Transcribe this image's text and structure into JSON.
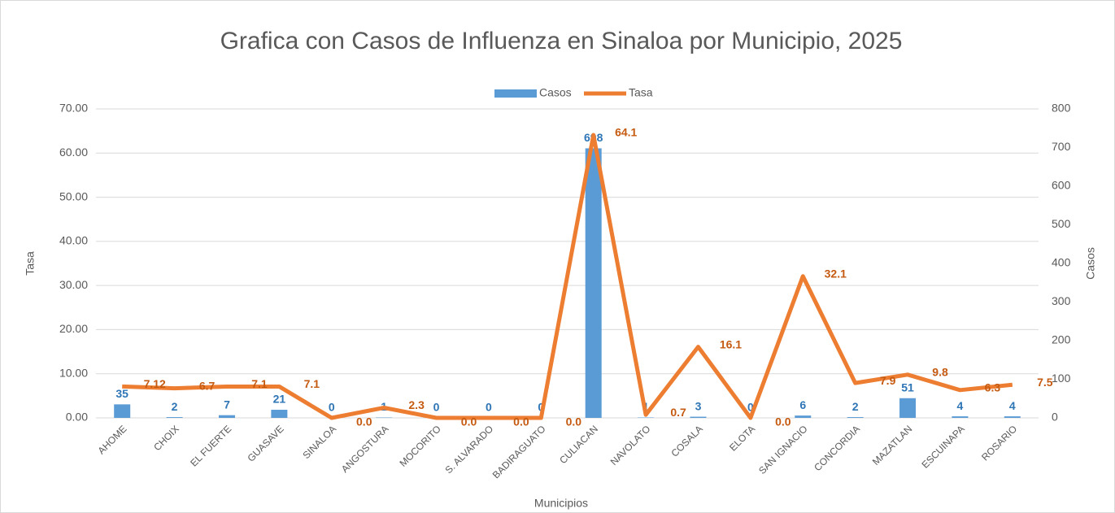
{
  "chart_data": {
    "type": "bar_line",
    "title": "Grafica con Casos de Influenza en Sinaloa por Municipio, 2025",
    "x_label": "Municipios",
    "y_label": "Tasa",
    "y2_label": "Casos",
    "categories": [
      "AHOME",
      "CHOIX",
      "EL FUERTE",
      "GUASAVE",
      "SINALOA",
      "ANGOSTURA",
      "MOCORITO",
      "S. ALVARADO",
      "BADIRAGUATO",
      "CULIACAN",
      "NAVOLATO",
      "COSALA",
      "ELOTA",
      "SAN IGNACIO",
      "CONCORDIA",
      "MAZATLAN",
      "ESCUINAPA",
      "ROSARIO"
    ],
    "series": [
      {
        "name": "Casos",
        "type": "bar",
        "axis": "y2",
        "color": "#5b9bd5",
        "values": [
          35,
          2,
          7,
          21,
          0,
          1,
          0,
          0,
          0,
          698,
          1,
          3,
          0,
          6,
          2,
          51,
          4,
          4
        ]
      },
      {
        "name": "Tasa",
        "type": "line",
        "axis": "y",
        "color": "#ed7d31",
        "values": [
          7.12,
          6.7,
          7.1,
          7.1,
          0,
          2.3,
          0,
          0,
          0,
          64.1,
          0.7,
          16.1,
          0,
          32.1,
          7.9,
          9.8,
          6.3,
          7.5
        ],
        "value_labels": [
          "7.12",
          "6.7",
          "7.1",
          "7.1",
          "0.0",
          "2.3",
          "0.0",
          "0.0",
          "0.0",
          "64.1",
          "0.7",
          "16.1",
          "0.0",
          "32.1",
          "7.9",
          "9.8",
          "6.3",
          "7.5"
        ]
      }
    ],
    "ylim": [
      0,
      70
    ],
    "yticks": [
      {
        "value": 0,
        "label": "0.00"
      },
      {
        "value": 10,
        "label": "10.00"
      },
      {
        "value": 20,
        "label": "20.00"
      },
      {
        "value": 30,
        "label": "30.00"
      },
      {
        "value": 40,
        "label": "40.00"
      },
      {
        "value": 50,
        "label": "50.00"
      },
      {
        "value": 60,
        "label": "60.00"
      },
      {
        "value": 70,
        "label": "70.00"
      }
    ],
    "y2lim": [
      0,
      800
    ],
    "y2ticks": [
      0,
      100,
      200,
      300,
      400,
      500,
      600,
      700,
      800
    ],
    "grid": true,
    "legend": "top"
  }
}
